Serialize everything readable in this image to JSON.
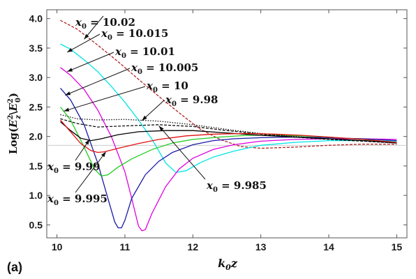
{
  "chart_data": {
    "type": "line",
    "panel_label": "(a)",
    "xlabel": "k0z",
    "ylabel": "Log(Ez2 \\ E02)",
    "xlim": [
      9.85,
      15.15
    ],
    "ylim": [
      0.28,
      4.15
    ],
    "x_ticks": [
      "10",
      "11",
      "12",
      "13",
      "14",
      "15"
    ],
    "y_ticks": [
      "0.5",
      "1.0",
      "1.5",
      "2.0",
      "2.5",
      "3.0",
      "3.5",
      "4.0"
    ],
    "reference_line_y": 1.85,
    "grid": false,
    "series": [
      {
        "name": "x0 = 10.02",
        "color": "#b22222",
        "dashed": true,
        "x": [
          10.05,
          10.3,
          10.6,
          10.9,
          11.2,
          11.5,
          11.8,
          12.1,
          12.4,
          12.7,
          13.0,
          13.5,
          14.0,
          14.5,
          15.0
        ],
        "y": [
          3.97,
          3.82,
          3.55,
          3.27,
          2.97,
          2.68,
          2.4,
          2.13,
          1.95,
          1.83,
          1.8,
          1.82,
          1.85,
          1.87,
          1.87
        ]
      },
      {
        "name": "x0 = 10.015",
        "color": "#00e5e5",
        "x": [
          10.05,
          10.2,
          10.4,
          10.6,
          10.8,
          11.0,
          11.2,
          11.4,
          11.6,
          11.75,
          11.9,
          12.1,
          12.3,
          12.6,
          13.0,
          13.5,
          14.0,
          14.5,
          15.0
        ],
        "y": [
          3.57,
          3.48,
          3.3,
          3.1,
          2.85,
          2.58,
          2.28,
          1.95,
          1.55,
          1.39,
          1.42,
          1.55,
          1.65,
          1.75,
          1.85,
          1.9,
          1.93,
          1.93,
          1.92
        ]
      },
      {
        "name": "x0 = 10.01",
        "color": "#e000e0",
        "x": [
          10.05,
          10.2,
          10.4,
          10.6,
          10.8,
          11.0,
          11.1,
          11.2,
          11.25,
          11.3,
          11.4,
          11.6,
          11.8,
          12.0,
          12.3,
          12.6,
          13.0,
          13.5,
          14.0,
          14.5,
          15.0
        ],
        "y": [
          3.17,
          3.04,
          2.8,
          2.45,
          2.0,
          1.4,
          0.95,
          0.48,
          0.4,
          0.42,
          0.7,
          1.15,
          1.45,
          1.63,
          1.78,
          1.86,
          1.92,
          1.95,
          1.96,
          1.96,
          1.95
        ]
      },
      {
        "name": "x0 = 10.005",
        "color": "#1a1aa8",
        "x": [
          10.05,
          10.2,
          10.4,
          10.6,
          10.75,
          10.85,
          10.9,
          10.95,
          11.0,
          11.1,
          11.3,
          11.5,
          11.7,
          12.0,
          12.3,
          12.6,
          13.0,
          13.5,
          14.0,
          14.5,
          15.0
        ],
        "y": [
          2.82,
          2.62,
          2.2,
          1.55,
          0.95,
          0.55,
          0.45,
          0.45,
          0.58,
          0.95,
          1.35,
          1.58,
          1.73,
          1.86,
          1.93,
          1.96,
          1.98,
          1.99,
          1.98,
          1.96,
          1.93
        ]
      },
      {
        "name": "x0 = 10",
        "color": "#22cc22",
        "x": [
          10.05,
          10.2,
          10.4,
          10.55,
          10.65,
          10.75,
          10.9,
          11.1,
          11.4,
          11.7,
          12.0,
          12.4,
          12.8,
          13.2,
          13.6,
          14.0,
          14.5,
          15.0
        ],
        "y": [
          2.5,
          2.28,
          1.82,
          1.45,
          1.33,
          1.35,
          1.48,
          1.62,
          1.78,
          1.89,
          1.95,
          1.99,
          2.02,
          2.02,
          2.01,
          1.99,
          1.95,
          1.9
        ]
      },
      {
        "name": "x0 = 9.98",
        "color": "#111111",
        "dotted": true,
        "x": [
          10.05,
          10.3,
          10.6,
          11.0,
          11.5,
          12.0,
          12.5,
          13.0,
          13.5,
          14.0,
          14.5,
          15.0
        ],
        "y": [
          2.37,
          2.3,
          2.28,
          2.29,
          2.26,
          2.2,
          2.12,
          2.05,
          2.0,
          1.96,
          1.93,
          1.9
        ]
      },
      {
        "name": "x0 = 9.985",
        "color": "#111111",
        "dashed": true,
        "x": [
          10.05,
          10.3,
          10.6,
          11.0,
          11.5,
          12.0,
          12.5,
          13.0,
          13.5,
          14.0,
          14.5,
          15.0
        ],
        "y": [
          2.3,
          2.22,
          2.16,
          2.18,
          2.2,
          2.17,
          2.1,
          2.04,
          1.99,
          1.95,
          1.92,
          1.89
        ]
      },
      {
        "name": "x0 = 9.99",
        "color": "#000000",
        "x": [
          10.05,
          10.2,
          10.35,
          10.5,
          10.65,
          10.9,
          11.2,
          11.6,
          12.0,
          12.5,
          13.0,
          13.5,
          14.0,
          14.5,
          15.0
        ],
        "y": [
          2.25,
          2.1,
          1.97,
          1.93,
          1.96,
          2.03,
          2.08,
          2.1,
          2.1,
          2.06,
          2.02,
          1.99,
          1.96,
          1.93,
          1.89
        ]
      },
      {
        "name": "x0 = 9.995",
        "color": "#e01010",
        "x": [
          10.05,
          10.2,
          10.35,
          10.5,
          10.6,
          10.7,
          10.9,
          11.2,
          11.5,
          11.9,
          12.3,
          12.8,
          13.2,
          13.6,
          14.0,
          14.5,
          15.0
        ],
        "y": [
          2.28,
          2.08,
          1.88,
          1.76,
          1.73,
          1.74,
          1.8,
          1.88,
          1.95,
          2.01,
          2.04,
          2.05,
          2.04,
          2.02,
          1.99,
          1.95,
          1.9
        ]
      }
    ],
    "annotations": [
      {
        "label": "x0 = 10.02",
        "target": [
          10.4,
          3.65
        ]
      },
      {
        "label": "x0 = 10.015",
        "target": [
          10.15,
          3.43
        ]
      },
      {
        "label": "x0 = 10.01",
        "target": [
          10.15,
          3.1
        ]
      },
      {
        "label": "x0 = 10.005",
        "target": [
          10.12,
          2.7
        ]
      },
      {
        "label": "x0 = 10",
        "target": [
          10.1,
          2.43
        ]
      },
      {
        "label": "x0 = 9.98",
        "target": [
          11.25,
          2.27
        ]
      },
      {
        "label": "x0 = 9.985",
        "target": [
          11.5,
          2.18
        ]
      },
      {
        "label": "x0 = 9.99",
        "target": [
          10.48,
          1.95
        ]
      },
      {
        "label": "x0 = 9.995",
        "target": [
          10.72,
          1.74
        ]
      }
    ]
  }
}
